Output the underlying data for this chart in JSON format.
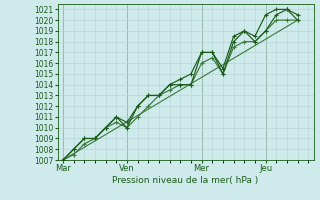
{
  "xlabel": "Pression niveau de la mer( hPa )",
  "ylim": [
    1007,
    1021.5
  ],
  "yticks": [
    1007,
    1008,
    1009,
    1010,
    1011,
    1012,
    1013,
    1014,
    1015,
    1016,
    1017,
    1018,
    1019,
    1020,
    1021
  ],
  "day_labels": [
    "Mar",
    "Ven",
    "Mer",
    "Jeu"
  ],
  "day_positions": [
    0,
    6,
    13,
    19
  ],
  "xlim": [
    -0.5,
    23.5
  ],
  "background_color": "#ceeaea",
  "grid_color": "#b8d4d4",
  "line_color_dark": "#1a5c1a",
  "line_color_mid": "#3a7a3a",
  "series1_x": [
    0,
    1,
    2,
    3,
    4,
    5,
    6,
    7,
    8,
    9,
    10,
    11,
    12,
    13,
    14,
    15,
    16,
    17,
    18,
    19,
    20,
    21,
    22
  ],
  "series1_y": [
    1007,
    1008,
    1009,
    1009,
    1010,
    1011,
    1010,
    1012,
    1013,
    1013,
    1014,
    1014,
    1014,
    1017,
    1017,
    1015,
    1018,
    1019,
    1018,
    1019,
    1020.5,
    1021,
    1020
  ],
  "series2_x": [
    0,
    1,
    2,
    3,
    4,
    5,
    6,
    7,
    8,
    9,
    10,
    11,
    12,
    13,
    14,
    15,
    16,
    17,
    18,
    19,
    20,
    21,
    22
  ],
  "series2_y": [
    1007,
    1008,
    1009,
    1009,
    1010,
    1011,
    1010.5,
    1012,
    1013,
    1013,
    1014,
    1014.5,
    1015,
    1017,
    1017,
    1015.5,
    1018.5,
    1019,
    1018.5,
    1020.5,
    1021,
    1021,
    1020.5
  ],
  "series3_x": [
    0,
    1,
    2,
    3,
    4,
    5,
    6,
    7,
    8,
    9,
    10,
    11,
    12,
    13,
    14,
    15,
    16,
    17,
    18,
    19,
    20,
    21,
    22
  ],
  "series3_y": [
    1007,
    1007.5,
    1008.5,
    1009,
    1010,
    1010.5,
    1010,
    1011,
    1012,
    1013,
    1013.5,
    1014,
    1014,
    1016,
    1016.5,
    1015,
    1017.5,
    1018,
    1018,
    1019,
    1020,
    1020,
    1020
  ],
  "trend_x": [
    0,
    22
  ],
  "trend_y": [
    1007,
    1020
  ]
}
